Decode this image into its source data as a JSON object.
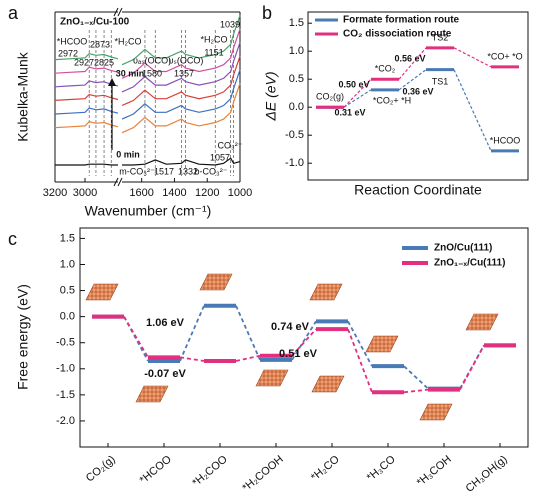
{
  "chart_data": [
    {
      "type": "spectra",
      "panel_label": "a",
      "title": "ZnO₁₋ₓ/Cu-100",
      "xlabel": "Wavenumber (cm⁻¹)",
      "ylabel": "Kubelka-Munk",
      "x": [
        3200,
        3100,
        3000,
        2972,
        2927,
        2873,
        2825,
        2780,
        1720,
        1650,
        1580,
        1517,
        1450,
        1357,
        1332,
        1250,
        1151,
        1100,
        1057,
        1039,
        1000
      ],
      "xlim": [
        3200,
        1000
      ],
      "xbreak": [
        2780,
        1720
      ],
      "xticks": [
        3200,
        3000,
        1600,
        1400,
        1200,
        1000
      ],
      "ylim": [
        0,
        10
      ],
      "series": [
        {
          "color": "#111111",
          "values": [
            1.0,
            1.0,
            1.0,
            1.05,
            1.05,
            1.05,
            1.0,
            1.0,
            1.0,
            1.0,
            1.05,
            1.3,
            1.05,
            1.1,
            1.3,
            1.05,
            1.0,
            1.1,
            1.4,
            1.1,
            1.2
          ]
        },
        {
          "color": "#e8833a",
          "values": [
            3.2,
            3.25,
            3.3,
            3.55,
            3.45,
            3.5,
            3.35,
            3.25,
            2.9,
            3.2,
            3.8,
            3.3,
            3.3,
            3.7,
            3.5,
            3.3,
            3.5,
            3.7,
            4.1,
            4.7,
            5.8
          ]
        },
        {
          "color": "#3d6fc4",
          "values": [
            4.0,
            4.05,
            4.1,
            4.35,
            4.25,
            4.3,
            4.15,
            4.05,
            3.7,
            4.0,
            4.6,
            4.1,
            4.1,
            4.5,
            4.3,
            4.1,
            4.3,
            4.5,
            4.9,
            5.5,
            6.6
          ]
        },
        {
          "color": "#d8403a",
          "values": [
            4.8,
            4.85,
            4.9,
            5.15,
            5.05,
            5.1,
            4.95,
            4.85,
            4.5,
            4.8,
            5.4,
            4.9,
            4.9,
            5.3,
            5.1,
            4.9,
            5.1,
            5.3,
            5.7,
            6.3,
            7.4
          ]
        },
        {
          "color": "#8a52b8",
          "values": [
            5.6,
            5.65,
            5.7,
            5.95,
            5.85,
            5.9,
            5.75,
            5.65,
            5.3,
            5.6,
            6.2,
            5.7,
            5.7,
            6.1,
            5.9,
            5.7,
            5.9,
            6.1,
            6.5,
            7.1,
            8.2
          ]
        },
        {
          "color": "#d050a0",
          "values": [
            6.4,
            6.45,
            6.5,
            6.75,
            6.65,
            6.7,
            6.55,
            6.45,
            6.1,
            6.4,
            7.0,
            6.5,
            6.5,
            6.9,
            6.7,
            6.5,
            6.7,
            6.9,
            7.3,
            7.9,
            9.0
          ]
        },
        {
          "color": "#4aa36a",
          "values": [
            7.2,
            7.25,
            7.3,
            7.55,
            7.45,
            7.5,
            7.35,
            7.25,
            6.9,
            7.2,
            7.8,
            7.3,
            7.3,
            7.7,
            7.5,
            7.3,
            7.5,
            7.7,
            8.1,
            8.7,
            9.8
          ]
        }
      ],
      "annotations": [
        {
          "text": "*HCOO",
          "color": "#d8403a"
        },
        {
          "text": "2972",
          "color": "#d8403a"
        },
        {
          "text": "2927",
          "color": "#3d6fc4"
        },
        {
          "text": "2873",
          "color": "#d8403a"
        },
        {
          "text": "2825",
          "color": "#3d6fc4"
        },
        {
          "text": "*H₂CO",
          "color": "#3d6fc4"
        },
        {
          "text": "υₐₛ(OCO)",
          "color": "#d8403a"
        },
        {
          "text": "1580",
          "color": "#d8403a"
        },
        {
          "text": "υₛ(OCO)",
          "color": "#d8403a"
        },
        {
          "text": "1357",
          "color": "#d8403a"
        },
        {
          "text": "*H₂CO",
          "color": "#3d6fc4"
        },
        {
          "text": "1151",
          "color": "#3d6fc4"
        },
        {
          "text": "1039",
          "color": "#3d6fc4"
        },
        {
          "text": "30 min",
          "color": "#111111"
        },
        {
          "text": "0 min",
          "color": "#111111"
        },
        {
          "text": "m-CO₃²⁻",
          "color": "#111111"
        },
        {
          "text": "1517",
          "color": "#111111"
        },
        {
          "text": "1332",
          "color": "#111111"
        },
        {
          "text": "b-CO₃²⁻",
          "color": "#111111"
        },
        {
          "text": "1057",
          "color": "#111111"
        },
        {
          "text": "CO₃²⁻",
          "color": "#111111"
        }
      ]
    },
    {
      "type": "energy-diagram",
      "panel_label": "b",
      "xlabel": "Reaction Coordinate",
      "ylabel": "ΔE (eV)",
      "ylim": [
        -1.3,
        1.7
      ],
      "yticks": [
        {
          "value": -1,
          "label": "-1.0"
        },
        -0.5,
        {
          "value": 0,
          "label": "0.0"
        },
        0.5,
        {
          "value": 1,
          "label": "1.0"
        },
        1.5
      ],
      "series": [
        {
          "name": "Formate formation route",
          "color": "#4a7ab5",
          "values": [
            0,
            0.31,
            0.67,
            -0.78
          ]
        },
        {
          "name": "CO₂ dissociation route",
          "color": "#e0307f",
          "values": [
            0,
            0.5,
            1.06,
            0.72
          ]
        }
      ],
      "annotations": [
        {
          "text": "CO₂(g)",
          "color": "#111111"
        },
        {
          "text": "*CO₂",
          "color": "#111111"
        },
        {
          "text": "*CO₂+ *H",
          "color": "#111111"
        },
        {
          "text": "TS1",
          "color": "#111111"
        },
        {
          "text": "TS2",
          "color": "#111111"
        },
        {
          "text": "*CO+ *O",
          "color": "#111111"
        },
        {
          "text": "*HCOO",
          "color": "#111111"
        },
        {
          "text": "0.50 eV",
          "color": "#e0307f"
        },
        {
          "text": "0.56 eV",
          "color": "#e0307f"
        },
        {
          "text": "0.31 eV",
          "color": "#4a7ab5"
        },
        {
          "text": "0.36 eV",
          "color": "#4a7ab5"
        }
      ]
    },
    {
      "type": "energy-diagram",
      "panel_label": "c",
      "ylabel": "Free energy (eV)",
      "categories": [
        "CO₂(g)",
        "*HCOO",
        "*H₂COO",
        "*H₂COOH",
        "*H₂CO",
        "*H₃CO",
        "*H₃COH",
        "CH₃OH(g)"
      ],
      "ylim": [
        -2.5,
        1.7
      ],
      "yticks": [
        1.5,
        {
          "value": 1,
          "label": "1.0"
        },
        0.5,
        {
          "value": 0,
          "label": "0.0"
        },
        -0.5,
        {
          "value": -1,
          "label": "-1.0"
        },
        -1.5,
        {
          "value": -2,
          "label": "-2.0"
        }
      ],
      "series": [
        {
          "name": "ZnO/Cu(111)",
          "color": "#4a7ab5",
          "values": [
            0,
            -0.85,
            0.21,
            -0.83,
            -0.09,
            -0.95,
            -1.38,
            -0.55
          ]
        },
        {
          "name": "ZnO₁₋ₓ/Cu(111)",
          "color": "#e0307f",
          "values": [
            0,
            -0.78,
            -0.85,
            -0.75,
            -0.24,
            -1.45,
            -1.4,
            -0.55
          ]
        }
      ],
      "annotations": [
        {
          "text": "1.06 eV",
          "color": "#4a7ab5"
        },
        {
          "text": "-0.07 eV",
          "color": "#e0307f"
        },
        {
          "text": "0.74 eV",
          "color": "#4a7ab5"
        },
        {
          "text": "0.51 eV",
          "color": "#e0307f"
        }
      ]
    }
  ]
}
